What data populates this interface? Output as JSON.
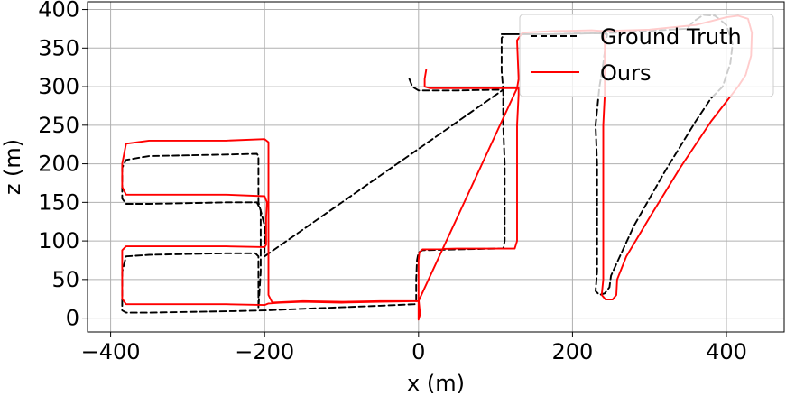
{
  "chart_data": {
    "type": "line",
    "title": "",
    "xlabel": "x (m)",
    "ylabel": "z (m)",
    "xlim": [
      -430,
      475
    ],
    "ylim": [
      -18,
      410
    ],
    "xticks": [
      -400,
      -200,
      0,
      200,
      400
    ],
    "xtick_labels": [
      "−400",
      "−200",
      "0",
      "200",
      "400"
    ],
    "yticks": [
      0,
      50,
      100,
      150,
      200,
      250,
      300,
      350,
      400
    ],
    "ytick_labels": [
      "0",
      "50",
      "100",
      "150",
      "200",
      "250",
      "300",
      "350",
      "400"
    ],
    "grid": true,
    "legend_position": "top-right",
    "series": [
      {
        "name": "Ground Truth",
        "color": "#000000",
        "dash": "dashed",
        "points": [
          [
            -12,
            310
          ],
          [
            -8,
            300
          ],
          [
            0,
            295
          ],
          [
            50,
            295
          ],
          [
            100,
            296
          ],
          [
            110,
            296
          ],
          [
            110,
            290
          ],
          [
            110,
            250
          ],
          [
            112,
            200
          ],
          [
            112,
            150
          ],
          [
            112,
            100
          ],
          [
            110,
            90
          ],
          [
            100,
            90
          ],
          [
            50,
            89
          ],
          [
            5,
            88
          ],
          [
            0,
            85
          ],
          [
            -2,
            75
          ],
          [
            -3,
            50
          ],
          [
            -3,
            20
          ],
          [
            -5,
            18
          ],
          [
            -50,
            16
          ],
          [
            -100,
            14
          ],
          [
            -150,
            12
          ],
          [
            -200,
            10
          ],
          [
            -240,
            9
          ],
          [
            -300,
            8
          ],
          [
            -350,
            7
          ],
          [
            -380,
            7
          ],
          [
            -385,
            10
          ],
          [
            -385,
            60
          ],
          [
            -380,
            80
          ],
          [
            -350,
            82
          ],
          [
            -300,
            83
          ],
          [
            -250,
            84
          ],
          [
            -212,
            84
          ],
          [
            -208,
            80
          ],
          [
            -208,
            50
          ],
          [
            -208,
            13
          ],
          [
            -205,
            60
          ],
          [
            -205,
            100
          ],
          [
            -205,
            140
          ],
          [
            -210,
            150
          ],
          [
            -250,
            150
          ],
          [
            -300,
            149
          ],
          [
            -350,
            148
          ],
          [
            -380,
            148
          ],
          [
            -385,
            155
          ],
          [
            -385,
            195
          ],
          [
            -380,
            205
          ],
          [
            -350,
            210
          ],
          [
            -300,
            211
          ],
          [
            -250,
            212
          ],
          [
            -210,
            213
          ],
          [
            -208,
            210
          ],
          [
            -208,
            160
          ],
          [
            -208,
            150
          ],
          [
            -200,
            120
          ],
          [
            -200,
            100
          ],
          [
            -200,
            80
          ],
          [
            110,
            296
          ],
          [
            108,
            320
          ],
          [
            108,
            363
          ],
          [
            112,
            368
          ],
          [
            130,
            368
          ],
          [
            170,
            368
          ],
          [
            200,
            369
          ],
          [
            235,
            369
          ],
          [
            245,
            368
          ],
          [
            240,
            330
          ],
          [
            235,
            300
          ],
          [
            230,
            250
          ],
          [
            232,
            200
          ],
          [
            232,
            150
          ],
          [
            232,
            100
          ],
          [
            232,
            60
          ],
          [
            230,
            35
          ],
          [
            235,
            30
          ],
          [
            242,
            32
          ],
          [
            248,
            40
          ],
          [
            250,
            55
          ],
          [
            280,
            120
          ],
          [
            320,
            190
          ],
          [
            360,
            255
          ],
          [
            380,
            285
          ],
          [
            395,
            300
          ],
          [
            405,
            330
          ],
          [
            408,
            355
          ],
          [
            400,
            380
          ],
          [
            385,
            392
          ],
          [
            370,
            393
          ],
          [
            358,
            385
          ],
          [
            348,
            375
          ],
          [
            260,
            370
          ],
          [
            180,
            368
          ],
          [
            108,
            368
          ]
        ]
      },
      {
        "name": "Ours",
        "color": "#ff0000",
        "dash": "solid",
        "points": [
          [
            10,
            322
          ],
          [
            8,
            310
          ],
          [
            8,
            300
          ],
          [
            15,
            298
          ],
          [
            60,
            298
          ],
          [
            110,
            298
          ],
          [
            130,
            298
          ],
          [
            130,
            290
          ],
          [
            128,
            250
          ],
          [
            128,
            200
          ],
          [
            128,
            150
          ],
          [
            128,
            100
          ],
          [
            125,
            90
          ],
          [
            100,
            90
          ],
          [
            50,
            90
          ],
          [
            5,
            89
          ],
          [
            1,
            85
          ],
          [
            0,
            75
          ],
          [
            0,
            50
          ],
          [
            0,
            25
          ],
          [
            2,
            5
          ],
          [
            0,
            -2
          ],
          [
            0,
            22
          ],
          [
            -50,
            21
          ],
          [
            -100,
            20
          ],
          [
            -150,
            21
          ],
          [
            -180,
            20
          ],
          [
            -195,
            19
          ],
          [
            -200,
            17
          ],
          [
            -250,
            18
          ],
          [
            -300,
            18
          ],
          [
            -350,
            18
          ],
          [
            -380,
            18
          ],
          [
            -385,
            25
          ],
          [
            -385,
            60
          ],
          [
            -385,
            88
          ],
          [
            -380,
            93
          ],
          [
            -350,
            93
          ],
          [
            -300,
            93
          ],
          [
            -250,
            93
          ],
          [
            -200,
            92
          ],
          [
            -198,
            95
          ],
          [
            -198,
            130
          ],
          [
            -197,
            150
          ],
          [
            -200,
            158
          ],
          [
            -250,
            160
          ],
          [
            -300,
            160
          ],
          [
            -350,
            160
          ],
          [
            -380,
            160
          ],
          [
            -385,
            170
          ],
          [
            -385,
            200
          ],
          [
            -380,
            226
          ],
          [
            -350,
            230
          ],
          [
            -300,
            230
          ],
          [
            -250,
            230
          ],
          [
            -200,
            232
          ],
          [
            -195,
            228
          ],
          [
            -195,
            200
          ],
          [
            -195,
            160
          ],
          [
            -195,
            100
          ],
          [
            -195,
            30
          ],
          [
            -190,
            20
          ],
          [
            -150,
            22
          ],
          [
            -100,
            21
          ],
          [
            -50,
            22
          ],
          [
            0,
            22
          ],
          [
            128,
            298
          ],
          [
            130,
            310
          ],
          [
            128,
            360
          ],
          [
            135,
            370
          ],
          [
            175,
            372
          ],
          [
            225,
            373
          ],
          [
            240,
            372
          ],
          [
            242,
            355
          ],
          [
            242,
            330
          ],
          [
            242,
            290
          ],
          [
            240,
            250
          ],
          [
            240,
            200
          ],
          [
            240,
            150
          ],
          [
            240,
            100
          ],
          [
            240,
            50
          ],
          [
            238,
            30
          ],
          [
            243,
            24
          ],
          [
            252,
            24
          ],
          [
            257,
            30
          ],
          [
            258,
            50
          ],
          [
            270,
            80
          ],
          [
            300,
            130
          ],
          [
            340,
            195
          ],
          [
            380,
            255
          ],
          [
            415,
            300
          ],
          [
            425,
            315
          ],
          [
            432,
            340
          ],
          [
            433,
            370
          ],
          [
            428,
            388
          ],
          [
            415,
            392
          ],
          [
            400,
            390
          ],
          [
            380,
            385
          ],
          [
            360,
            380
          ],
          [
            300,
            374
          ],
          [
            240,
            372
          ]
        ]
      }
    ]
  }
}
